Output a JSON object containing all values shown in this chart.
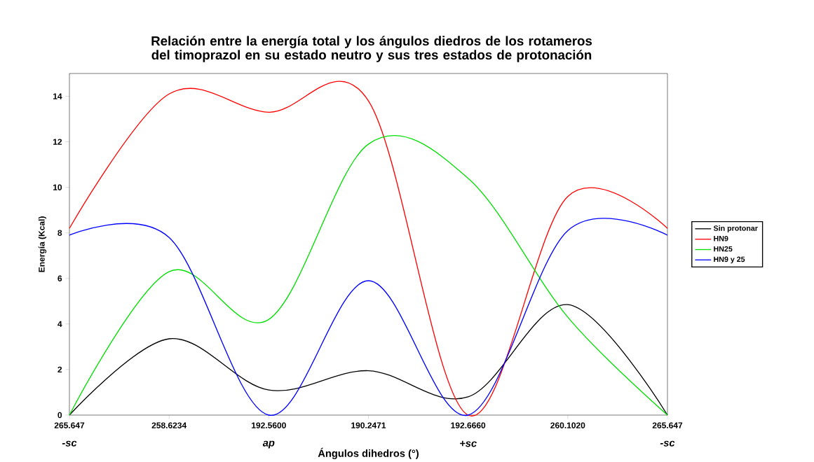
{
  "chart_data": {
    "type": "line",
    "title": "Relación entre la energía total y los ángulos diedros de los rotameros del timoprazol en su estado neutro y sus tres estados de protonación",
    "xlabel": "Ángulos dihedros (°)",
    "ylabel": "Energía (Kcal)",
    "categories": [
      "265.647",
      "258.6234",
      "192.5600",
      "190.2471",
      "192.6660",
      "260.1020",
      "265.647"
    ],
    "series": [
      {
        "name": "Sin protonar",
        "color": "#000000",
        "values": [
          0,
          3.35,
          1.1,
          1.95,
          0.8,
          4.85,
          0
        ]
      },
      {
        "name": "HN9",
        "color": "#ff0000",
        "values": [
          8.2,
          14.1,
          13.3,
          13.8,
          0,
          9.6,
          8.2
        ]
      },
      {
        "name": "HN25",
        "color": "#00e000",
        "values": [
          0,
          6.3,
          4.2,
          11.9,
          10.4,
          4.3,
          0
        ]
      },
      {
        "name": "HN9 y 25",
        "color": "#0000ff",
        "values": [
          7.9,
          7.8,
          0,
          5.9,
          0,
          8.1,
          7.9
        ]
      }
    ],
    "ylim": [
      0,
      15
    ],
    "yticks": [
      0,
      2,
      4,
      6,
      8,
      10,
      12,
      14
    ],
    "annotations": [
      "-sc",
      "ap",
      "+sc",
      "-sc"
    ],
    "legend": "right",
    "grid": false,
    "marker": "none",
    "line_style": "solid"
  }
}
